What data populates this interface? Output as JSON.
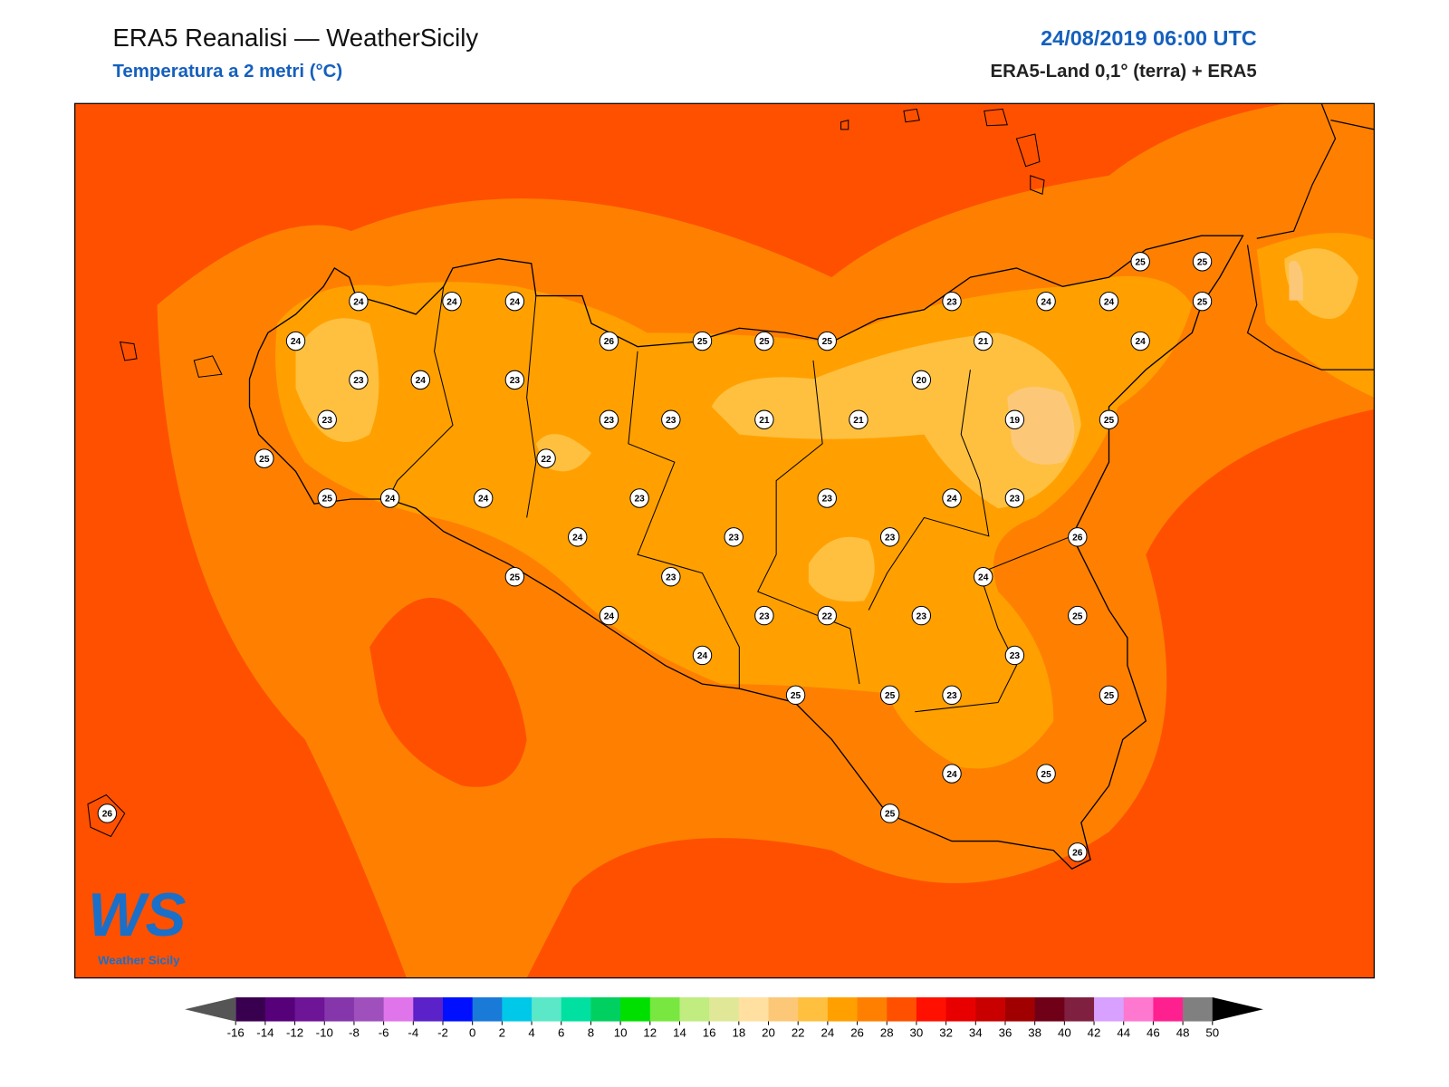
{
  "header": {
    "title": "ERA5 Reanalisi — WeatherSicily",
    "subtitle": "Temperatura a 2 metri (°C)",
    "datetime": "24/08/2019 06:00 UTC",
    "source": "ERA5-Land 0,1° (terra) + ERA5"
  },
  "logo": {
    "mark": "WS",
    "name": "Weather Sicily"
  },
  "stations": [
    24,
    24,
    24,
    24,
    23,
    24,
    23,
    23,
    26,
    25,
    25,
    25,
    23,
    24,
    24,
    25,
    25,
    25,
    21,
    24,
    20,
    21,
    21,
    19,
    25,
    23,
    23,
    22,
    25,
    25,
    24,
    24,
    23,
    23,
    24,
    23,
    24,
    23,
    23,
    26,
    25,
    23,
    24,
    24,
    23,
    22,
    23,
    25,
    24,
    23,
    25,
    25,
    23,
    25,
    24,
    25,
    25,
    26,
    26
  ],
  "colorbar": {
    "ticks": [
      -16,
      -14,
      -12,
      -10,
      -8,
      -6,
      -4,
      -2,
      0,
      2,
      4,
      6,
      8,
      10,
      12,
      14,
      16,
      18,
      20,
      22,
      24,
      26,
      28,
      30,
      32,
      34,
      36,
      38,
      40,
      42,
      44,
      46,
      48,
      50
    ],
    "under_color": "#555555",
    "over_color": "#000000",
    "colors": [
      "#3a0050",
      "#56007a",
      "#6e1496",
      "#8436aa",
      "#a050bc",
      "#e074ea",
      "#5a22c8",
      "#0010ff",
      "#1a7ad8",
      "#00c8e8",
      "#5ae8c8",
      "#00e0a0",
      "#00d060",
      "#00e000",
      "#78e840",
      "#c0ec80",
      "#e0e898",
      "#ffe0a0",
      "#fcc878",
      "#ffc040",
      "#ffa000",
      "#ff8000",
      "#ff5000",
      "#ff1000",
      "#e80000",
      "#c80000",
      "#a00000",
      "#700018",
      "#802040",
      "#d8a0ff",
      "#ff78d0",
      "#ff2090",
      "#808080"
    ]
  }
}
